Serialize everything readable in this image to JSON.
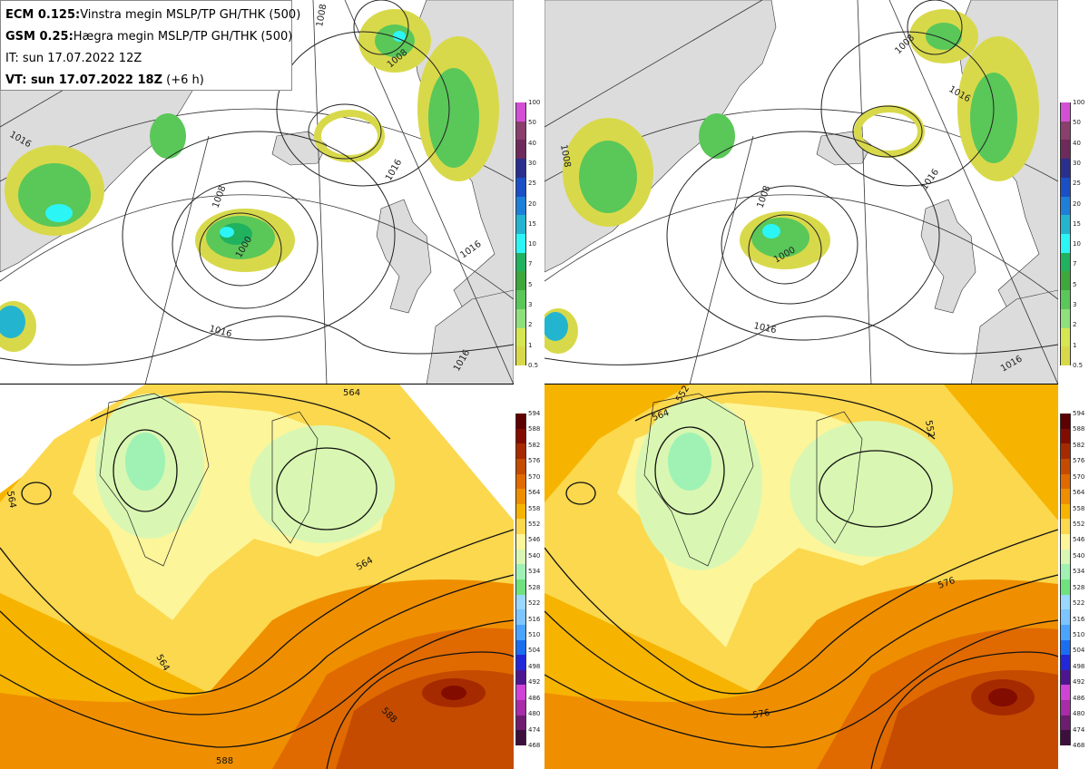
{
  "info": {
    "line1_bold": "ECM 0.125:",
    "line1_rest": "Vinstra megin MSLP/TP GH/THK (500)",
    "line2_bold": "GSM 0.25:",
    "line2_rest": "Hægra megin MSLP/TP GH/THK (500)",
    "line3": "IT: sun 17.07.2022 12Z",
    "line4_bold": "VT: sun 17.07.2022 18Z",
    "line4_rest": "(+6 h)"
  },
  "precip_scale": {
    "labels": [
      "100",
      "50",
      "40",
      "30",
      "25",
      "20",
      "15",
      "10",
      "7",
      "5",
      "3",
      "2",
      "1",
      "0.5"
    ],
    "colors": [
      "#d34fd6",
      "#8a3f6c",
      "#6e2a5b",
      "#2a2f8e",
      "#1a4fc6",
      "#1e7fd8",
      "#23b5cf",
      "#2cf5f5",
      "#20b25f",
      "#3ea83c",
      "#5ac759",
      "#8fe07c",
      "#d6e650",
      "#d8d94a"
    ]
  },
  "thk_scale": {
    "labels": [
      "594",
      "588",
      "582",
      "576",
      "570",
      "564",
      "558",
      "552",
      "546",
      "540",
      "534",
      "528",
      "522",
      "516",
      "510",
      "504",
      "498",
      "492",
      "486",
      "480",
      "474",
      "468"
    ],
    "colors": [
      "#5c0000",
      "#820c00",
      "#a52a00",
      "#c44b00",
      "#e06a00",
      "#ef8f00",
      "#f6b400",
      "#fbd84e",
      "#fdf59a",
      "#d9f7b2",
      "#9ff2b4",
      "#6fe27f",
      "#9ad8ff",
      "#7cc5ff",
      "#4aa4ff",
      "#1b6ef0",
      "#2228d8",
      "#4d1590",
      "#cf43d6",
      "#a82ba8",
      "#6e1c6e",
      "#3c0f3c"
    ]
  },
  "left_top": {
    "isobar_labels": [
      "1008",
      "1016",
      "1000",
      "1016",
      "1016",
      "1008",
      "1008",
      "1016",
      "1016"
    ]
  },
  "right_top": {
    "isobar_labels": [
      "1008",
      "1008",
      "1000",
      "1016",
      "1016",
      "1008",
      "1016",
      "1016"
    ]
  },
  "left_bottom": {
    "contour_labels": [
      "564",
      "564",
      "564",
      "588",
      "588",
      "564"
    ]
  },
  "right_bottom": {
    "contour_labels": [
      "552",
      "552",
      "576",
      "576",
      "564"
    ]
  }
}
